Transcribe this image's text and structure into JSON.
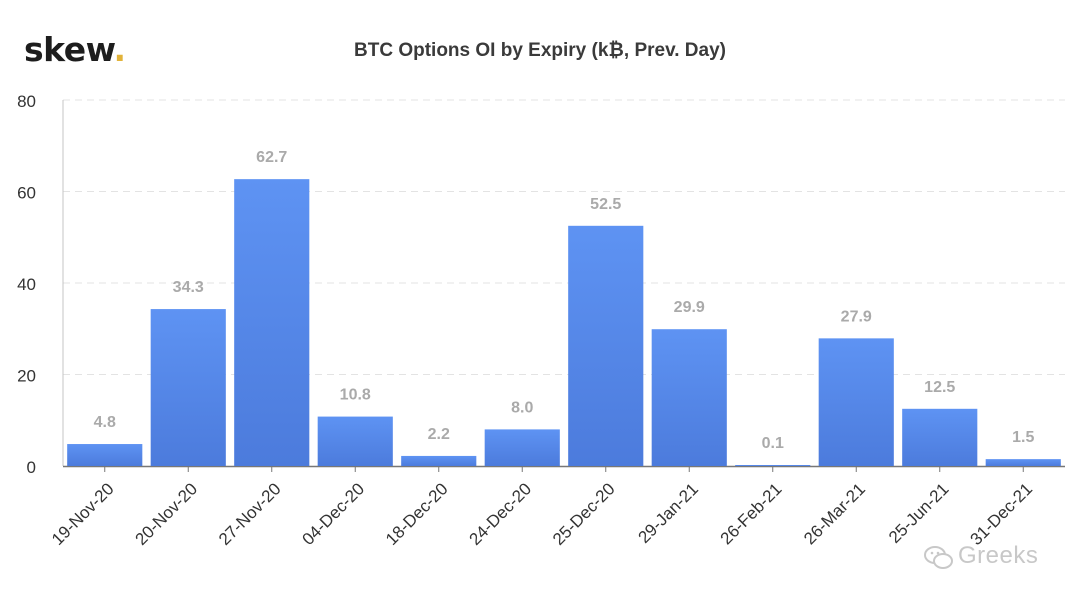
{
  "header": {
    "logo_text": "skew",
    "logo_dot": ".",
    "title": "BTC Options OI by Expiry (k₿, Prev. Day)"
  },
  "watermark": {
    "text": "Greeks",
    "icon": "wechat-icon"
  },
  "colors": {
    "bar": "#5b8def",
    "bar_dark": "#4f7fe0",
    "label": "#aaaaaa",
    "grid": "#e3e3e3",
    "axis": "#777777"
  },
  "chart_data": {
    "type": "bar",
    "title": "BTC Options OI by Expiry (k₿, Prev. Day)",
    "xlabel": "",
    "ylabel": "",
    "categories": [
      "19-Nov-20",
      "20-Nov-20",
      "27-Nov-20",
      "04-Dec-20",
      "18-Dec-20",
      "24-Dec-20",
      "25-Dec-20",
      "29-Jan-21",
      "26-Feb-21",
      "26-Mar-21",
      "25-Jun-21",
      "31-Dec-21"
    ],
    "values": [
      4.8,
      34.3,
      62.7,
      10.8,
      2.2,
      8.0,
      52.5,
      29.9,
      0.1,
      27.9,
      12.5,
      1.5
    ],
    "value_labels": [
      "4.8",
      "34.3",
      "62.7",
      "10.8",
      "2.2",
      "8.0",
      "52.5",
      "29.9",
      "0.1",
      "27.9",
      "12.5",
      "1.5"
    ],
    "ylim": [
      0,
      80
    ],
    "yticks": [
      "0",
      "20",
      "40",
      "60",
      "80"
    ],
    "grid": true,
    "legend": "none"
  }
}
